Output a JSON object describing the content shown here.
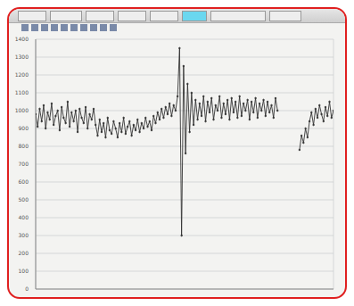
{
  "chart_data": {
    "type": "line",
    "tick_labels": "y",
    "grid": true,
    "color": "#333333",
    "xlim": [
      0,
      149
    ],
    "xticks": [
      0,
      15,
      30,
      45,
      60,
      75,
      90,
      105,
      120,
      135
    ],
    "ylim": [
      0,
      1400
    ],
    "yticks": [
      0,
      100,
      200,
      300,
      400,
      500,
      600,
      700,
      800,
      900,
      1000,
      1100,
      1200,
      1300,
      1400
    ],
    "x": [
      0,
      1,
      2,
      3,
      4,
      5,
      6,
      7,
      8,
      9,
      10,
      11,
      12,
      13,
      14,
      15,
      16,
      17,
      18,
      19,
      20,
      21,
      22,
      23,
      24,
      25,
      26,
      27,
      28,
      29,
      30,
      31,
      32,
      33,
      34,
      35,
      36,
      37,
      38,
      39,
      40,
      41,
      42,
      43,
      44,
      45,
      46,
      47,
      48,
      49,
      50,
      51,
      52,
      53,
      54,
      55,
      56,
      57,
      58,
      59,
      60,
      61,
      62,
      63,
      64,
      65,
      66,
      67,
      68,
      69,
      70,
      71,
      72,
      73,
      74,
      75,
      76,
      77,
      78,
      79,
      80,
      81,
      82,
      83,
      84,
      85,
      86,
      87,
      88,
      89,
      90,
      91,
      92,
      93,
      94,
      95,
      96,
      97,
      98,
      99,
      100,
      101,
      102,
      103,
      104,
      105,
      106,
      107,
      108,
      109,
      110,
      111,
      112,
      113,
      114,
      115,
      116,
      117,
      118,
      119,
      120,
      121,
      122,
      123,
      124,
      125,
      126,
      127,
      128,
      129,
      130,
      131,
      132,
      133,
      134,
      135,
      136,
      137,
      138,
      139,
      140,
      141,
      142,
      143,
      144,
      145,
      146,
      147,
      148,
      149
    ],
    "values": [
      980,
      910,
      1010,
      940,
      1030,
      900,
      990,
      950,
      1040,
      920,
      970,
      1000,
      890,
      1020,
      960,
      930,
      1050,
      910,
      990,
      940,
      1000,
      880,
      1010,
      960,
      930,
      1020,
      900,
      980,
      950,
      1010,
      920,
      860,
      950,
      880,
      930,
      850,
      960,
      890,
      870,
      940,
      900,
      850,
      930,
      880,
      960,
      870,
      910,
      940,
      860,
      920,
      890,
      950,
      880,
      930,
      900,
      960,
      910,
      940,
      890,
      970,
      930,
      990,
      950,
      1010,
      960,
      1020,
      980,
      1040,
      970,
      1030,
      1000,
      1080,
      1350,
      300,
      1250,
      760,
      1150,
      880,
      1100,
      920,
      1060,
      950,
      1040,
      970,
      1080,
      940,
      1050,
      990,
      1070,
      950,
      1030,
      1000,
      1080,
      960,
      1040,
      980,
      1060,
      950,
      1070,
      990,
      1050,
      960,
      1080,
      970,
      1040,
      1000,
      1060,
      950,
      1050,
      990,
      1070,
      960,
      1040,
      1000,
      1060,
      970,
      1050,
      990,
      1030,
      960,
      1070,
      1000,
      null,
      null,
      null,
      null,
      null,
      null,
      null,
      null,
      null,
      null,
      780,
      860,
      820,
      900,
      850,
      940,
      990,
      920,
      1010,
      960,
      1030,
      980,
      940,
      1020,
      970,
      1050,
      960,
      1000
    ]
  }
}
